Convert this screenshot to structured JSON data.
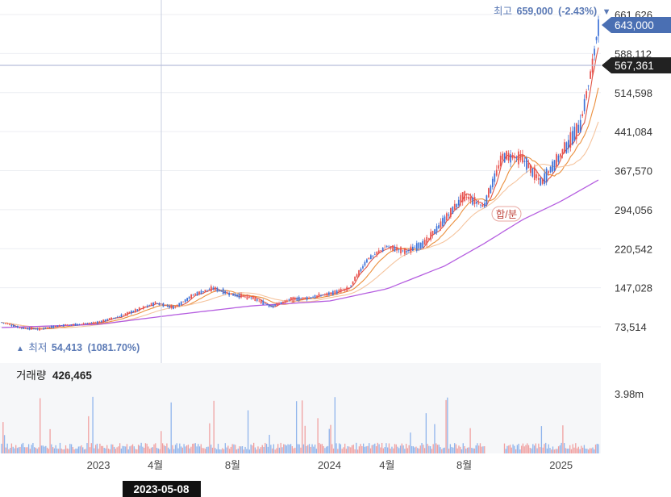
{
  "chart_data": {
    "type": "candlestick",
    "price_axis": {
      "ticks": [
        "73,514",
        "147,028",
        "220,542",
        "294,056",
        "367,570",
        "441,084",
        "514,598",
        "588,112",
        "661,626"
      ],
      "tick_values": [
        73514,
        147028,
        220542,
        294056,
        367570,
        441084,
        514598,
        588112,
        661626
      ],
      "ylim": [
        40000,
        675000
      ]
    },
    "volume_axis": {
      "tick": "3.98m",
      "tick_value": 3980000
    },
    "x_axis": {
      "labels": [
        {
          "text": "2023",
          "date": "2023-01-01"
        },
        {
          "text": "4월",
          "date": "2023-04-01"
        },
        {
          "text": "8월",
          "date": "2023-08-01"
        },
        {
          "text": "2024",
          "date": "2024-01-01"
        },
        {
          "text": "4월",
          "date": "2024-04-01"
        },
        {
          "text": "8월",
          "date": "2024-08-01"
        },
        {
          "text": "2025",
          "date": "2025-01-01"
        }
      ]
    },
    "high": {
      "label": "최고",
      "value": "659,000",
      "change": "(-2.43%)",
      "marker": "▼"
    },
    "low": {
      "label": "최저",
      "value": "54,413",
      "change": "(1081.70%)",
      "marker": "▲"
    },
    "current_price_tag": "643,000",
    "crosshair_price_tag": "567,361",
    "crosshair_date": "2023-05-08",
    "volume": {
      "label": "거래량",
      "value": "426,465"
    },
    "annotation": "합/분",
    "colors": {
      "up": "#e8524f",
      "down": "#3f73d8",
      "ma_short": "#e05545",
      "ma_mid_1": "#eb8f3d",
      "ma_mid_2": "#f5c49e",
      "ma_long": "#b55ee0",
      "vol_down": "#8fb4ec",
      "vol_up": "#f0a0a0",
      "price_tag": "#4a6fb3",
      "crosshair_tag": "#222222",
      "accent_text": "#5a79b5"
    },
    "price_series": [
      [
        "2022-08-01",
        82000
      ],
      [
        "2022-09-01",
        71000
      ],
      [
        "2022-10-01",
        69000
      ],
      [
        "2022-11-01",
        76000
      ],
      [
        "2022-12-01",
        78000
      ],
      [
        "2023-01-01",
        82000
      ],
      [
        "2023-02-01",
        92000
      ],
      [
        "2023-03-01",
        104000
      ],
      [
        "2023-04-01",
        118000
      ],
      [
        "2023-05-01",
        110000
      ],
      [
        "2023-06-01",
        134000
      ],
      [
        "2023-07-01",
        146000
      ],
      [
        "2023-08-01",
        134000
      ],
      [
        "2023-09-01",
        128000
      ],
      [
        "2023-10-01",
        112000
      ],
      [
        "2023-11-01",
        125000
      ],
      [
        "2023-12-01",
        128000
      ],
      [
        "2024-01-01",
        136000
      ],
      [
        "2024-02-01",
        145000
      ],
      [
        "2024-03-01",
        200000
      ],
      [
        "2024-04-01",
        225000
      ],
      [
        "2024-05-01",
        215000
      ],
      [
        "2024-06-01",
        232000
      ],
      [
        "2024-07-01",
        275000
      ],
      [
        "2024-08-01",
        320000
      ],
      [
        "2024-09-01",
        300000
      ],
      [
        "2024-10-01",
        395000
      ],
      [
        "2024-11-01",
        390000
      ],
      [
        "2024-12-01",
        345000
      ],
      [
        "2025-01-01",
        398000
      ],
      [
        "2025-02-01",
        455000
      ],
      [
        "2025-02-20",
        568000
      ],
      [
        "2025-03-01",
        643000
      ]
    ],
    "ma_long_series": [
      [
        "2022-08-01",
        72000
      ],
      [
        "2023-01-01",
        78000
      ],
      [
        "2023-05-01",
        96000
      ],
      [
        "2023-09-01",
        113000
      ],
      [
        "2024-01-01",
        122000
      ],
      [
        "2024-04-01",
        145000
      ],
      [
        "2024-07-01",
        188000
      ],
      [
        "2024-09-01",
        230000
      ],
      [
        "2024-11-01",
        275000
      ],
      [
        "2025-01-01",
        310000
      ],
      [
        "2025-03-01",
        350000
      ]
    ]
  }
}
